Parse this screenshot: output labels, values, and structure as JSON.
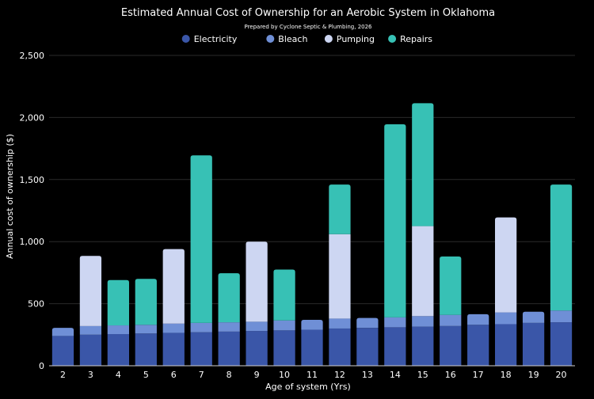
{
  "chart_data": {
    "type": "bar",
    "stacked": true,
    "title": "Estimated Annual Cost of Ownership for an Aerobic System in Oklahoma",
    "subtitle": "Prepared by Cyclone Septic & Plumbing, 2026",
    "xlabel": "Age of system (Yrs)",
    "ylabel": "Annual cost of ownership ($)",
    "ylim": [
      0,
      2500
    ],
    "yticks": [
      0,
      500,
      1000,
      1500,
      2000,
      2500
    ],
    "ytick_labels": [
      "0",
      "500",
      "1,000",
      "1,500",
      "2,000",
      "2,500"
    ],
    "grid": true,
    "legend_position": "top-center",
    "categories": [
      "2",
      "3",
      "4",
      "5",
      "6",
      "7",
      "8",
      "9",
      "10",
      "11",
      "12",
      "13",
      "14",
      "15",
      "16",
      "17",
      "18",
      "19",
      "20"
    ],
    "series": [
      {
        "name": "Electricity",
        "color": "#3a56a8",
        "values": [
          240,
          250,
          255,
          260,
          265,
          270,
          275,
          280,
          285,
          290,
          300,
          305,
          310,
          315,
          320,
          330,
          335,
          345,
          350
        ]
      },
      {
        "name": "Bleach",
        "color": "#6f8fd6",
        "values": [
          65,
          70,
          70,
          70,
          75,
          75,
          75,
          75,
          80,
          80,
          80,
          80,
          80,
          85,
          90,
          85,
          95,
          90,
          95
        ]
      },
      {
        "name": "Pumping",
        "color": "#cdd6f2",
        "values": [
          0,
          565,
          0,
          0,
          600,
          0,
          0,
          645,
          0,
          0,
          680,
          0,
          0,
          725,
          0,
          0,
          765,
          0,
          0
        ]
      },
      {
        "name": "Repairs",
        "color": "#37c1b5",
        "values": [
          0,
          0,
          365,
          370,
          0,
          1350,
          395,
          0,
          410,
          0,
          400,
          0,
          1555,
          990,
          470,
          0,
          0,
          0,
          1015
        ]
      }
    ]
  }
}
